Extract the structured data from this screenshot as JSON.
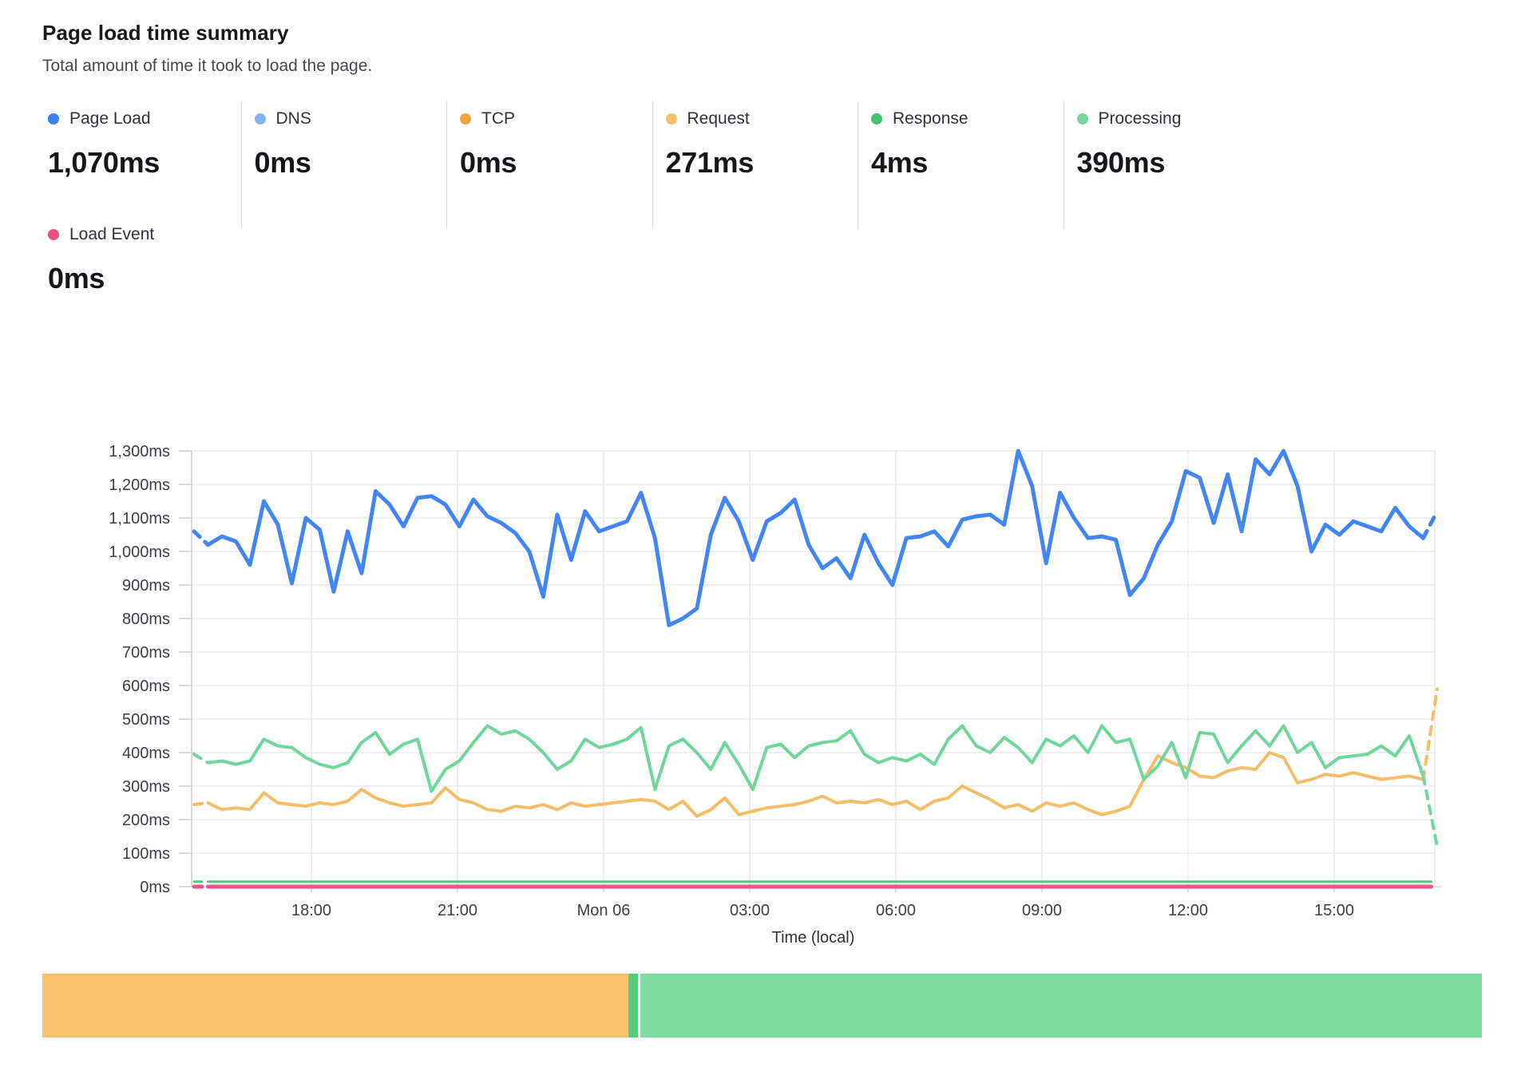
{
  "header": {
    "title": "Page load time summary",
    "subtitle": "Total amount of time it took to load the page."
  },
  "stats": {
    "row1": [
      {
        "label": "Page Load",
        "value": "1,070ms",
        "color": "#4080ee"
      },
      {
        "label": "DNS",
        "value": "0ms",
        "color": "#85b3f4"
      },
      {
        "label": "TCP",
        "value": "0ms",
        "color": "#f2a33e"
      },
      {
        "label": "Request",
        "value": "271ms",
        "color": "#f6c067"
      },
      {
        "label": "Response",
        "value": "4ms",
        "color": "#3fc473"
      },
      {
        "label": "Processing",
        "value": "390ms",
        "color": "#72d79a"
      }
    ],
    "row2": [
      {
        "label": "Load Event",
        "value": "0ms",
        "color": "#ee4d85"
      }
    ]
  },
  "chart_data": {
    "type": "line",
    "title": "Page load time summary",
    "xlabel": "Time (local)",
    "ylabel": "",
    "y_unit": "ms",
    "ylim": [
      0,
      1300
    ],
    "y_tick_step": 100,
    "y_tick_labels": [
      "0ms",
      "100ms",
      "200ms",
      "300ms",
      "400ms",
      "500ms",
      "600ms",
      "700ms",
      "800ms",
      "900ms",
      "1,000ms",
      "1,100ms",
      "1,200ms",
      "1,300ms"
    ],
    "x_tick_labels": [
      "18:00",
      "21:00",
      "Mon 06",
      "03:00",
      "06:00",
      "09:00",
      "12:00",
      "15:00"
    ],
    "grid": true,
    "legend_position": "top-stats",
    "note": "first and last segments of each line are dashed (partial data)",
    "series": [
      {
        "name": "Page Load",
        "color": "#4285f4",
        "stroke": 5,
        "values": [
          1060,
          1020,
          1045,
          1030,
          960,
          1150,
          1080,
          905,
          1100,
          1065,
          880,
          1060,
          935,
          1180,
          1140,
          1075,
          1160,
          1165,
          1140,
          1075,
          1155,
          1105,
          1085,
          1055,
          1000,
          865,
          1110,
          975,
          1120,
          1060,
          1075,
          1090,
          1175,
          1040,
          780,
          800,
          830,
          1050,
          1160,
          1090,
          975,
          1090,
          1115,
          1155,
          1020,
          950,
          980,
          920,
          1050,
          965,
          900,
          1040,
          1045,
          1060,
          1015,
          1095,
          1105,
          1110,
          1080,
          1300,
          1195,
          965,
          1175,
          1100,
          1040,
          1045,
          1035,
          870,
          920,
          1020,
          1090,
          1240,
          1220,
          1085,
          1230,
          1060,
          1275,
          1230,
          1300,
          1195,
          1000,
          1080,
          1050,
          1090,
          1075,
          1060,
          1130,
          1075,
          1040,
          1120
        ]
      },
      {
        "name": "Processing",
        "color": "#70d79b",
        "stroke": 4,
        "values": [
          395,
          370,
          375,
          365,
          375,
          440,
          420,
          415,
          385,
          365,
          355,
          370,
          430,
          460,
          395,
          425,
          440,
          285,
          350,
          375,
          430,
          480,
          455,
          465,
          440,
          400,
          350,
          375,
          440,
          415,
          425,
          440,
          475,
          290,
          420,
          440,
          400,
          350,
          430,
          365,
          290,
          415,
          425,
          385,
          420,
          430,
          435,
          465,
          395,
          370,
          385,
          375,
          395,
          365,
          440,
          480,
          420,
          400,
          445,
          415,
          370,
          440,
          420,
          450,
          400,
          480,
          430,
          440,
          320,
          360,
          430,
          325,
          460,
          455,
          370,
          420,
          465,
          420,
          480,
          400,
          430,
          355,
          385,
          390,
          395,
          420,
          390,
          450,
          330,
          120
        ]
      },
      {
        "name": "Request",
        "color": "#f6bd68",
        "stroke": 4,
        "values": [
          245,
          250,
          230,
          235,
          230,
          280,
          250,
          245,
          240,
          250,
          245,
          255,
          290,
          265,
          250,
          240,
          245,
          250,
          295,
          260,
          250,
          230,
          225,
          240,
          235,
          245,
          230,
          250,
          240,
          245,
          250,
          255,
          260,
          255,
          230,
          255,
          210,
          230,
          265,
          215,
          225,
          235,
          240,
          245,
          255,
          270,
          250,
          255,
          250,
          260,
          245,
          255,
          230,
          255,
          265,
          300,
          280,
          260,
          235,
          245,
          225,
          250,
          240,
          250,
          230,
          215,
          225,
          240,
          320,
          390,
          370,
          355,
          330,
          325,
          345,
          355,
          350,
          400,
          385,
          310,
          320,
          335,
          330,
          340,
          330,
          320,
          325,
          330,
          320,
          590
        ]
      },
      {
        "name": "Response",
        "color": "#52c57e",
        "stroke": 3,
        "constant": 4
      },
      {
        "name": "DNS",
        "color": "#85b3f4",
        "stroke": 4,
        "constant": 0
      },
      {
        "name": "TCP",
        "color": "#f2a33e",
        "stroke": 4,
        "constant": 0
      },
      {
        "name": "Load Event",
        "color": "#e9548a",
        "stroke": 5,
        "constant": 0
      }
    ],
    "footer_bar": {
      "segments": [
        {
          "name": "request",
          "color": "#f9c26d",
          "fraction": 0.407
        },
        {
          "name": "response",
          "color": "#55cb80",
          "fraction": 0.0067
        },
        {
          "name": "gap",
          "color": "#ffffff",
          "fraction": 0.0018
        },
        {
          "name": "processing",
          "color": "#7fdda1",
          "fraction": 0.5845
        }
      ]
    }
  }
}
